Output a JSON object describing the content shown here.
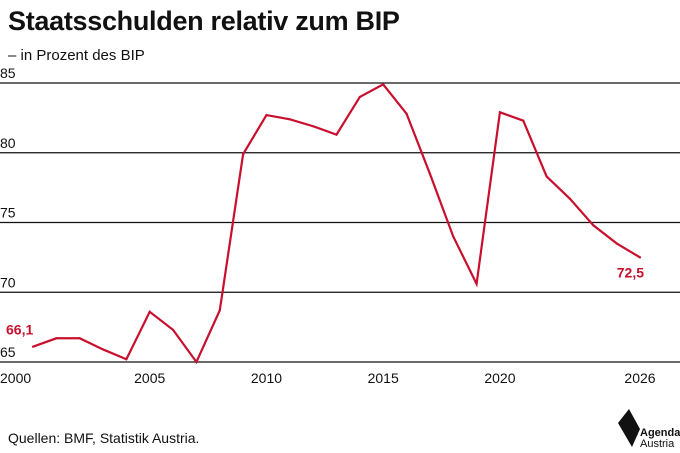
{
  "header": {
    "title": "Staatsschulden relativ zum BIP",
    "subtitle": "– in Prozent des BIP"
  },
  "footer": {
    "source": "Quellen: BMF, Statistik Austria.",
    "logo_line1": "Agenda",
    "logo_line2": "Austria"
  },
  "colors": {
    "line": "#c8102e",
    "grid": "#111111",
    "text": "#111111"
  },
  "chart_data": {
    "type": "line",
    "title": "Staatsschulden relativ zum BIP",
    "subtitle": "– in Prozent des BIP",
    "xlabel": "",
    "ylabel": "",
    "xlim": [
      2000,
      2026
    ],
    "ylim": [
      65,
      85
    ],
    "x_ticks": [
      "2000",
      "2005",
      "2010",
      "2015",
      "2020",
      "2026"
    ],
    "y_ticks": [
      "65",
      "70",
      "75",
      "80",
      "85"
    ],
    "grid": "horizontal",
    "x": [
      2000,
      2001,
      2002,
      2003,
      2004,
      2005,
      2006,
      2007,
      2008,
      2009,
      2010,
      2011,
      2012,
      2013,
      2014,
      2015,
      2016,
      2017,
      2018,
      2019,
      2020,
      2021,
      2022,
      2023,
      2024,
      2025,
      2026
    ],
    "series": [
      {
        "values": [
          66.1,
          66.7,
          66.7,
          65.9,
          65.2,
          68.6,
          67.3,
          65.0,
          68.7,
          79.9,
          82.7,
          82.4,
          81.9,
          81.3,
          84.0,
          84.9,
          82.8,
          78.5,
          74.0,
          70.6,
          82.9,
          82.3,
          78.3,
          76.7,
          74.8,
          73.5,
          72.5
        ]
      }
    ],
    "annotations": [
      {
        "text": "66,1",
        "x": 2000,
        "y": 66.1
      },
      {
        "text": "72,5",
        "x": 2026,
        "y": 72.5
      }
    ]
  }
}
